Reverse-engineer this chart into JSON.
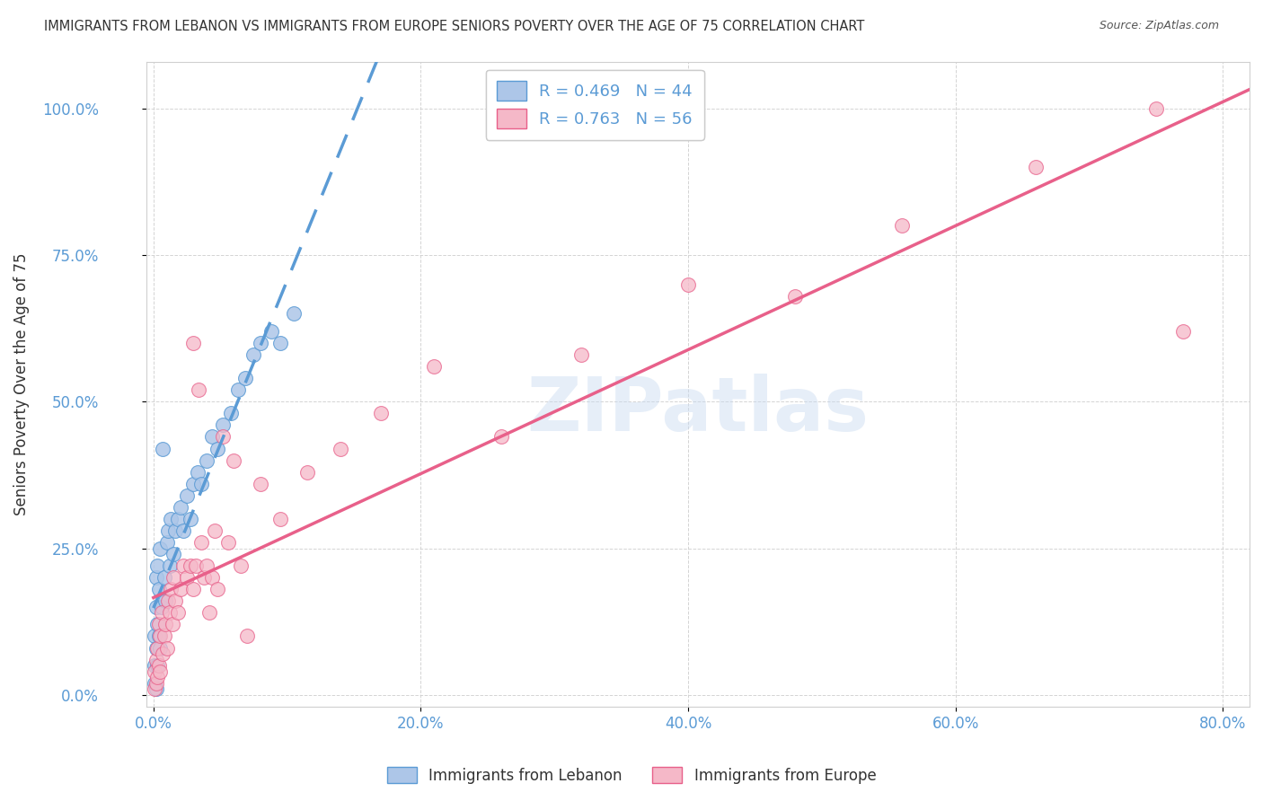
{
  "title": "IMMIGRANTS FROM LEBANON VS IMMIGRANTS FROM EUROPE SENIORS POVERTY OVER THE AGE OF 75 CORRELATION CHART",
  "source": "Source: ZipAtlas.com",
  "ylabel": "Seniors Poverty Over the Age of 75",
  "xlabel_ticks": [
    "0.0%",
    "20.0%",
    "40.0%",
    "60.0%",
    "80.0%"
  ],
  "ylabel_ticks": [
    "0.0%",
    "25.0%",
    "50.0%",
    "75.0%",
    "100.0%"
  ],
  "xlim_min": -0.005,
  "xlim_max": 0.82,
  "ylim_min": -0.02,
  "ylim_max": 1.08,
  "legend1_label": "R = 0.469   N = 44",
  "legend2_label": "R = 0.763   N = 56",
  "legend_bottom1": "Immigrants from Lebanon",
  "legend_bottom2": "Immigrants from Europe",
  "watermark": "ZIPatlas",
  "color_lebanon": "#adc6e8",
  "color_europe": "#f5b8c8",
  "trendline_lebanon_color": "#5b9bd5",
  "trendline_europe_color": "#e8608a",
  "background_color": "#ffffff",
  "grid_color": "#d0d0d0",
  "lebanon_x": [
    0.001,
    0.001,
    0.001,
    0.002,
    0.002,
    0.002,
    0.002,
    0.003,
    0.003,
    0.003,
    0.004,
    0.004,
    0.005,
    0.005,
    0.006,
    0.007,
    0.008,
    0.009,
    0.01,
    0.011,
    0.012,
    0.013,
    0.015,
    0.016,
    0.018,
    0.02,
    0.022,
    0.025,
    0.028,
    0.03,
    0.033,
    0.036,
    0.04,
    0.044,
    0.048,
    0.052,
    0.058,
    0.063,
    0.069,
    0.075,
    0.08,
    0.088,
    0.095,
    0.105
  ],
  "lebanon_y": [
    0.02,
    0.05,
    0.1,
    0.01,
    0.08,
    0.15,
    0.2,
    0.05,
    0.12,
    0.22,
    0.1,
    0.18,
    0.08,
    0.25,
    0.15,
    0.42,
    0.2,
    0.16,
    0.26,
    0.28,
    0.22,
    0.3,
    0.24,
    0.28,
    0.3,
    0.32,
    0.28,
    0.34,
    0.3,
    0.36,
    0.38,
    0.36,
    0.4,
    0.44,
    0.42,
    0.46,
    0.48,
    0.52,
    0.54,
    0.58,
    0.6,
    0.62,
    0.6,
    0.65
  ],
  "europe_x": [
    0.001,
    0.001,
    0.002,
    0.002,
    0.003,
    0.003,
    0.004,
    0.004,
    0.005,
    0.005,
    0.006,
    0.007,
    0.008,
    0.009,
    0.01,
    0.011,
    0.012,
    0.013,
    0.014,
    0.015,
    0.016,
    0.018,
    0.02,
    0.022,
    0.025,
    0.028,
    0.03,
    0.03,
    0.032,
    0.034,
    0.036,
    0.038,
    0.04,
    0.042,
    0.044,
    0.046,
    0.048,
    0.052,
    0.056,
    0.06,
    0.065,
    0.07,
    0.08,
    0.095,
    0.115,
    0.14,
    0.17,
    0.21,
    0.26,
    0.32,
    0.4,
    0.48,
    0.56,
    0.66,
    0.75,
    0.77
  ],
  "europe_y": [
    0.01,
    0.04,
    0.02,
    0.06,
    0.03,
    0.08,
    0.05,
    0.12,
    0.04,
    0.1,
    0.14,
    0.07,
    0.1,
    0.12,
    0.08,
    0.16,
    0.14,
    0.18,
    0.12,
    0.2,
    0.16,
    0.14,
    0.18,
    0.22,
    0.2,
    0.22,
    0.6,
    0.18,
    0.22,
    0.52,
    0.26,
    0.2,
    0.22,
    0.14,
    0.2,
    0.28,
    0.18,
    0.44,
    0.26,
    0.4,
    0.22,
    0.1,
    0.36,
    0.3,
    0.38,
    0.42,
    0.48,
    0.56,
    0.44,
    0.58,
    0.7,
    0.68,
    0.8,
    0.9,
    1.0,
    0.62
  ]
}
